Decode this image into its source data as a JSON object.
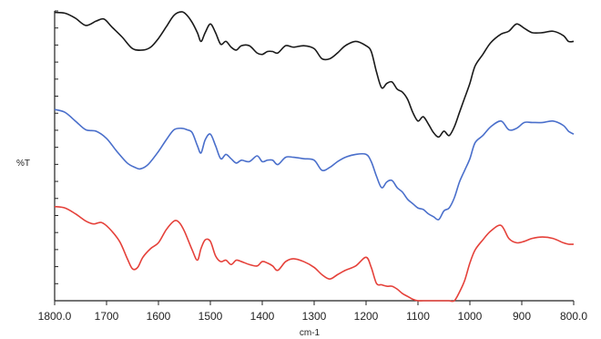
{
  "chart_data": {
    "type": "line",
    "xlabel": "cm-1",
    "ylabel": "%T",
    "xlim": [
      1800,
      800
    ],
    "x_reversed": true,
    "ylim": [
      0,
      100
    ],
    "y_tick_labels_shown": false,
    "y_minor_tick_count": 17,
    "x_ticks": [
      "1800.0",
      "1700",
      "1600",
      "1500",
      "1400",
      "1300",
      "1200",
      "1100",
      "1000",
      "900",
      "800.0"
    ],
    "x_tick_values": [
      1800,
      1700,
      1600,
      1500,
      1400,
      1300,
      1200,
      1100,
      1000,
      900,
      800
    ],
    "grid": false,
    "legend": "none",
    "series": [
      {
        "color": "#1a1a1a",
        "x": [
          1800,
          1780,
          1760,
          1740,
          1720,
          1705,
          1690,
          1670,
          1650,
          1630,
          1615,
          1600,
          1585,
          1570,
          1555,
          1545,
          1535,
          1525,
          1518,
          1510,
          1500,
          1490,
          1480,
          1470,
          1460,
          1450,
          1440,
          1425,
          1410,
          1400,
          1390,
          1380,
          1370,
          1355,
          1340,
          1320,
          1300,
          1285,
          1270,
          1255,
          1240,
          1220,
          1200,
          1190,
          1180,
          1170,
          1160,
          1150,
          1140,
          1130,
          1120,
          1110,
          1100,
          1090,
          1080,
          1070,
          1060,
          1050,
          1040,
          1030,
          1020,
          1010,
          1000,
          990,
          975,
          960,
          940,
          925,
          910,
          895,
          880,
          860,
          840,
          820,
          810,
          800
        ],
        "y": [
          99.5,
          99.2,
          97.5,
          95,
          96.5,
          97.2,
          94.5,
          91,
          87,
          86.5,
          87.5,
          90.5,
          94.5,
          98.5,
          99.7,
          98.5,
          96,
          92.5,
          89.5,
          92.5,
          95.5,
          92.5,
          88.5,
          89.5,
          87.5,
          86.5,
          88,
          88,
          85.5,
          85,
          86,
          86,
          85.5,
          88,
          87.5,
          88,
          87,
          83.5,
          83.5,
          85.5,
          88,
          89.5,
          88,
          86,
          79,
          73.5,
          75,
          75.5,
          73,
          72,
          69.5,
          65,
          62,
          63.5,
          61,
          58,
          56.5,
          58.5,
          57,
          60,
          65,
          70,
          75,
          81,
          85,
          89,
          92,
          93,
          95.5,
          94,
          92.5,
          92.5,
          93,
          91.5,
          89.5,
          89.5
        ]
      },
      {
        "color": "#4a6fcb",
        "x": [
          1800,
          1780,
          1760,
          1740,
          1720,
          1700,
          1680,
          1660,
          1645,
          1635,
          1620,
          1600,
          1585,
          1570,
          1555,
          1545,
          1535,
          1525,
          1518,
          1510,
          1500,
          1490,
          1480,
          1470,
          1460,
          1450,
          1440,
          1425,
          1410,
          1400,
          1390,
          1380,
          1370,
          1355,
          1340,
          1320,
          1300,
          1285,
          1270,
          1255,
          1240,
          1220,
          1200,
          1190,
          1180,
          1170,
          1160,
          1150,
          1140,
          1130,
          1120,
          1110,
          1100,
          1090,
          1080,
          1070,
          1060,
          1050,
          1040,
          1030,
          1020,
          1010,
          1000,
          990,
          975,
          960,
          940,
          925,
          910,
          895,
          880,
          860,
          840,
          820,
          810,
          800
        ],
        "y": [
          66,
          65,
          62,
          59,
          58.5,
          56,
          51.5,
          47.5,
          46,
          45.5,
          47,
          51.5,
          55.5,
          59,
          59.5,
          59,
          58,
          53.5,
          51,
          55.5,
          57.5,
          53.5,
          49,
          50.5,
          49,
          47.5,
          48.5,
          48,
          50,
          48,
          48.5,
          48.5,
          47,
          49.5,
          49.5,
          49,
          48.5,
          45,
          46,
          48,
          49.5,
          50.5,
          50.5,
          48,
          43,
          39,
          41,
          41.5,
          39,
          37.5,
          35,
          33.5,
          32,
          31.5,
          30,
          29,
          28,
          31,
          32,
          35.5,
          41,
          45,
          49,
          54.5,
          57,
          60,
          62,
          59,
          59.5,
          61.5,
          61.5,
          61.5,
          62,
          60.5,
          58.5,
          57.5
        ]
      },
      {
        "color": "#e5413a",
        "x": [
          1800,
          1780,
          1760,
          1740,
          1725,
          1710,
          1695,
          1675,
          1660,
          1650,
          1640,
          1630,
          1615,
          1600,
          1585,
          1570,
          1560,
          1550,
          1535,
          1525,
          1518,
          1510,
          1500,
          1490,
          1480,
          1470,
          1460,
          1450,
          1440,
          1425,
          1410,
          1400,
          1390,
          1380,
          1370,
          1355,
          1340,
          1320,
          1300,
          1285,
          1270,
          1255,
          1240,
          1220,
          1200,
          1190,
          1180,
          1170,
          1160,
          1150,
          1140,
          1130,
          1120,
          1110,
          1100,
          1090,
          1080,
          1070,
          1060,
          1050,
          1040,
          1030,
          1020,
          1010,
          1000,
          990,
          975,
          960,
          940,
          925,
          910,
          895,
          880,
          860,
          840,
          820,
          810,
          800
        ],
        "y": [
          32.5,
          32,
          30,
          27.5,
          26.5,
          27,
          25,
          20.5,
          14.5,
          11,
          11.5,
          15,
          18,
          20,
          24.5,
          27.5,
          27,
          24,
          17.5,
          14,
          18,
          21,
          20.5,
          15.5,
          13.5,
          14,
          12.5,
          14,
          13.5,
          12.5,
          12,
          13.5,
          13,
          12,
          10.5,
          13.5,
          14.5,
          13.5,
          11.5,
          9,
          7.5,
          9,
          10.5,
          12,
          15,
          11.5,
          6,
          5.5,
          5,
          5,
          4,
          2.5,
          1.5,
          0.5,
          0,
          0,
          0,
          0,
          0,
          0,
          0,
          0,
          3,
          7,
          13,
          17.5,
          21,
          24,
          26,
          21.5,
          20,
          20.5,
          21.5,
          22,
          21.5,
          20,
          19.5,
          19.5
        ]
      }
    ]
  }
}
